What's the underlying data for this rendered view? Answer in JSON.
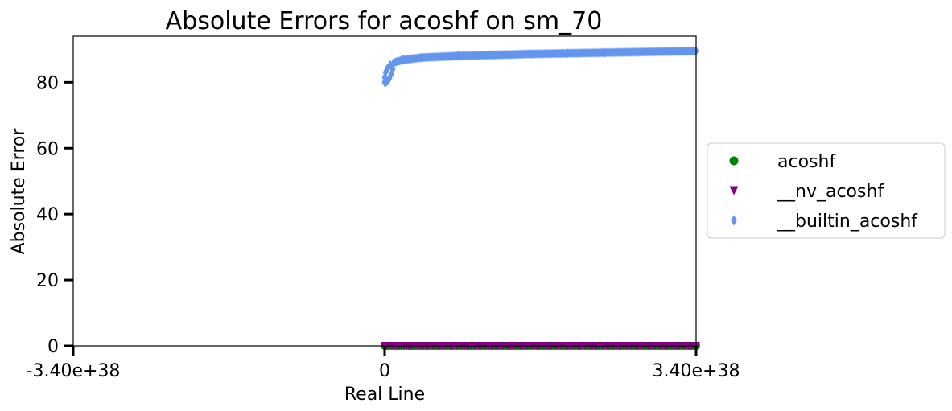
{
  "chart_data": {
    "type": "scatter",
    "title": "Absolute Errors for acoshf on sm_70",
    "xlabel": "Real Line",
    "ylabel": "Absolute Error",
    "xlim": [
      -3.4e+38,
      3.4e+38
    ],
    "ylim": [
      0,
      94
    ],
    "xticks": [
      {
        "value": -3.4e+38,
        "label": "-3.40e+38"
      },
      {
        "value": 0,
        "label": "0"
      },
      {
        "value": 3.4e+38,
        "label": "3.40e+38"
      }
    ],
    "yticks": [
      {
        "value": 0,
        "label": "0"
      },
      {
        "value": 20,
        "label": "20"
      },
      {
        "value": 40,
        "label": "40"
      },
      {
        "value": 60,
        "label": "60"
      },
      {
        "value": 80,
        "label": "80"
      }
    ],
    "legend_position": "right-outside",
    "series": [
      {
        "name": "acoshf",
        "marker": "circle",
        "color": "#008000",
        "x": [
          0,
          3.4e+37,
          6.8e+37,
          1.02e+38,
          1.36e+38,
          1.7e+38,
          2.04e+38,
          2.38e+38,
          2.72e+38,
          3.06e+38,
          3.4e+38
        ],
        "y": [
          0,
          0,
          0,
          0,
          0,
          0,
          0,
          0,
          0,
          0,
          0
        ]
      },
      {
        "name": "__nv_acoshf",
        "marker": "triangle-down",
        "color": "#800080",
        "x": [
          0,
          3.4e+37,
          6.8e+37,
          1.02e+38,
          1.36e+38,
          1.7e+38,
          2.04e+38,
          2.38e+38,
          2.72e+38,
          3.06e+38,
          3.4e+38
        ],
        "y": [
          0,
          0,
          0,
          0,
          0,
          0,
          0,
          0,
          0,
          0,
          0
        ]
      },
      {
        "name": "__builtin_acoshf",
        "marker": "thin-diamond",
        "color": "#6495ED",
        "x": [
          1e+30,
          1e+35,
          1e+36,
          3e+36,
          6e+36,
          1e+37,
          2e+37,
          4e+37,
          8e+37,
          1.2e+38,
          1.6e+38,
          2e+38,
          2.4e+38,
          2.8e+38,
          3.2e+38,
          3.4e+38
        ],
        "y": [
          80.0,
          81.5,
          83.0,
          84.2,
          85.3,
          86.0,
          86.8,
          87.5,
          88.0,
          88.3,
          88.6,
          88.8,
          89.0,
          89.2,
          89.4,
          89.5
        ]
      }
    ]
  }
}
